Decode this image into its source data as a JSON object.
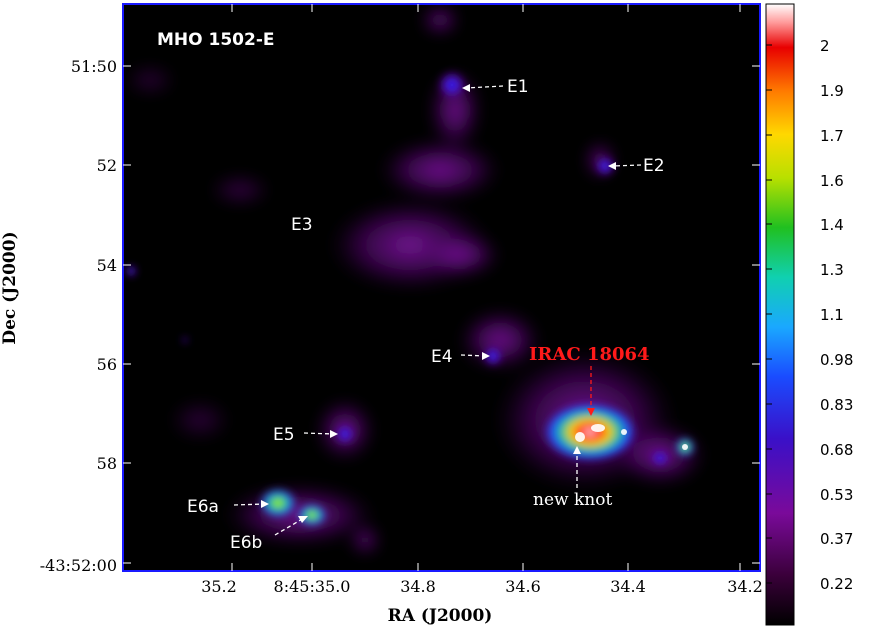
{
  "image": {
    "title": "MHO 1502-E",
    "source_label": "IRAC 18064",
    "new_knot_label": "new knot",
    "knots": [
      "E1",
      "E2",
      "E3",
      "E4",
      "E5",
      "E6a",
      "E6b"
    ]
  },
  "axes": {
    "xlabel": "RA (J2000)",
    "ylabel": "Dec (J2000)",
    "xticks": [
      "35.2",
      "8:45:35.0",
      "34.8",
      "34.6",
      "34.4",
      "34.2"
    ],
    "yticks": [
      "51:50",
      "52",
      "54",
      "56",
      "58",
      "-43:52:00"
    ]
  },
  "colorbar": {
    "ticks": [
      "2",
      "1.9",
      "1.7",
      "1.6",
      "1.4",
      "1.3",
      "1.1",
      "0.98",
      "0.83",
      "0.68",
      "0.53",
      "0.37",
      "0.22"
    ]
  },
  "colors": {
    "frame": "#1a1aff",
    "background": "#000000",
    "source_label": "#ff1a1a",
    "label": "#ffffff"
  }
}
